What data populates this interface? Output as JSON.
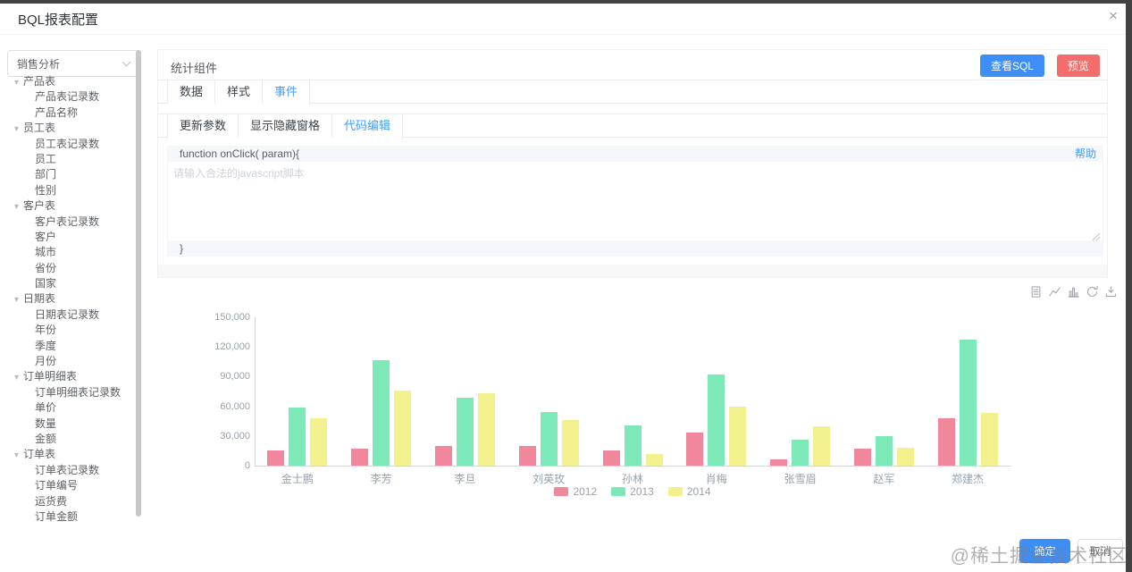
{
  "window": {
    "title": "BQL报表配置",
    "close_icon": "×",
    "watermark": "@稀土掘金技术社区"
  },
  "sidebar": {
    "dataset_select": {
      "value": "销售分析"
    },
    "tree": [
      {
        "label": "产品表",
        "children": [
          "产品表记录数",
          "产品名称"
        ]
      },
      {
        "label": "员工表",
        "children": [
          "员工表记录数",
          "员工",
          "部门",
          "性别"
        ]
      },
      {
        "label": "客户表",
        "children": [
          "客户表记录数",
          "客户",
          "城市",
          "省份",
          "国家"
        ]
      },
      {
        "label": "日期表",
        "children": [
          "日期表记录数",
          "年份",
          "季度",
          "月份"
        ]
      },
      {
        "label": "订单明细表",
        "children": [
          "订单明细表记录数",
          "单价",
          "数量",
          "金额"
        ]
      },
      {
        "label": "订单表",
        "children": [
          "订单表记录数",
          "订单编号",
          "运货费",
          "订单金额"
        ]
      }
    ]
  },
  "panel": {
    "title": "统计组件",
    "buttons": {
      "view_sql": "查看SQL",
      "preview": "预览"
    },
    "tabs": [
      {
        "id": "data",
        "label": "数据",
        "active": false
      },
      {
        "id": "style",
        "label": "样式",
        "active": false
      },
      {
        "id": "event",
        "label": "事件",
        "active": true
      }
    ],
    "subtabs": [
      {
        "id": "update-params",
        "label": "更新参数",
        "active": false
      },
      {
        "id": "show-hide-pane",
        "label": "显示隐藏窗格",
        "active": false
      },
      {
        "id": "code-edit",
        "label": "代码编辑",
        "active": true
      }
    ],
    "editor": {
      "header": "function onClick( param){",
      "help_link": "帮助",
      "placeholder": "请输入合法的javascript脚本",
      "value": "",
      "footer": "}"
    }
  },
  "chart_toolbox": [
    "data-view",
    "line-chart",
    "bar-chart",
    "restore",
    "download"
  ],
  "chart_data": {
    "type": "bar",
    "title": "",
    "categories": [
      "金士鹏",
      "李芳",
      "李旦",
      "刘英玫",
      "孙林",
      "肖梅",
      "张雪眉",
      "赵军",
      "郑建杰"
    ],
    "series": [
      {
        "name": "2012",
        "color": "#f1879c",
        "values": [
          15000,
          17000,
          20000,
          20000,
          15000,
          33000,
          6000,
          17000,
          48000
        ]
      },
      {
        "name": "2013",
        "color": "#7de8b8",
        "values": [
          59000,
          107000,
          69000,
          54000,
          41000,
          92000,
          26000,
          30000,
          127000
        ]
      },
      {
        "name": "2014",
        "color": "#f3f08e",
        "values": [
          48000,
          76000,
          73000,
          46000,
          12000,
          60000,
          40000,
          18000,
          53000
        ]
      }
    ],
    "ylim": [
      0,
      150000
    ],
    "yticks": [
      "150,000",
      "120,000",
      "90,000",
      "60,000",
      "30,000",
      "0"
    ],
    "xlabel": "",
    "ylabel": "",
    "grid": false,
    "legend_position": "bottom"
  },
  "footer_buttons": {
    "ok": "确定",
    "cancel": "取消"
  },
  "colors": {
    "primary": "#3e8ef7",
    "danger": "#f56c6c",
    "link": "#409eff"
  }
}
